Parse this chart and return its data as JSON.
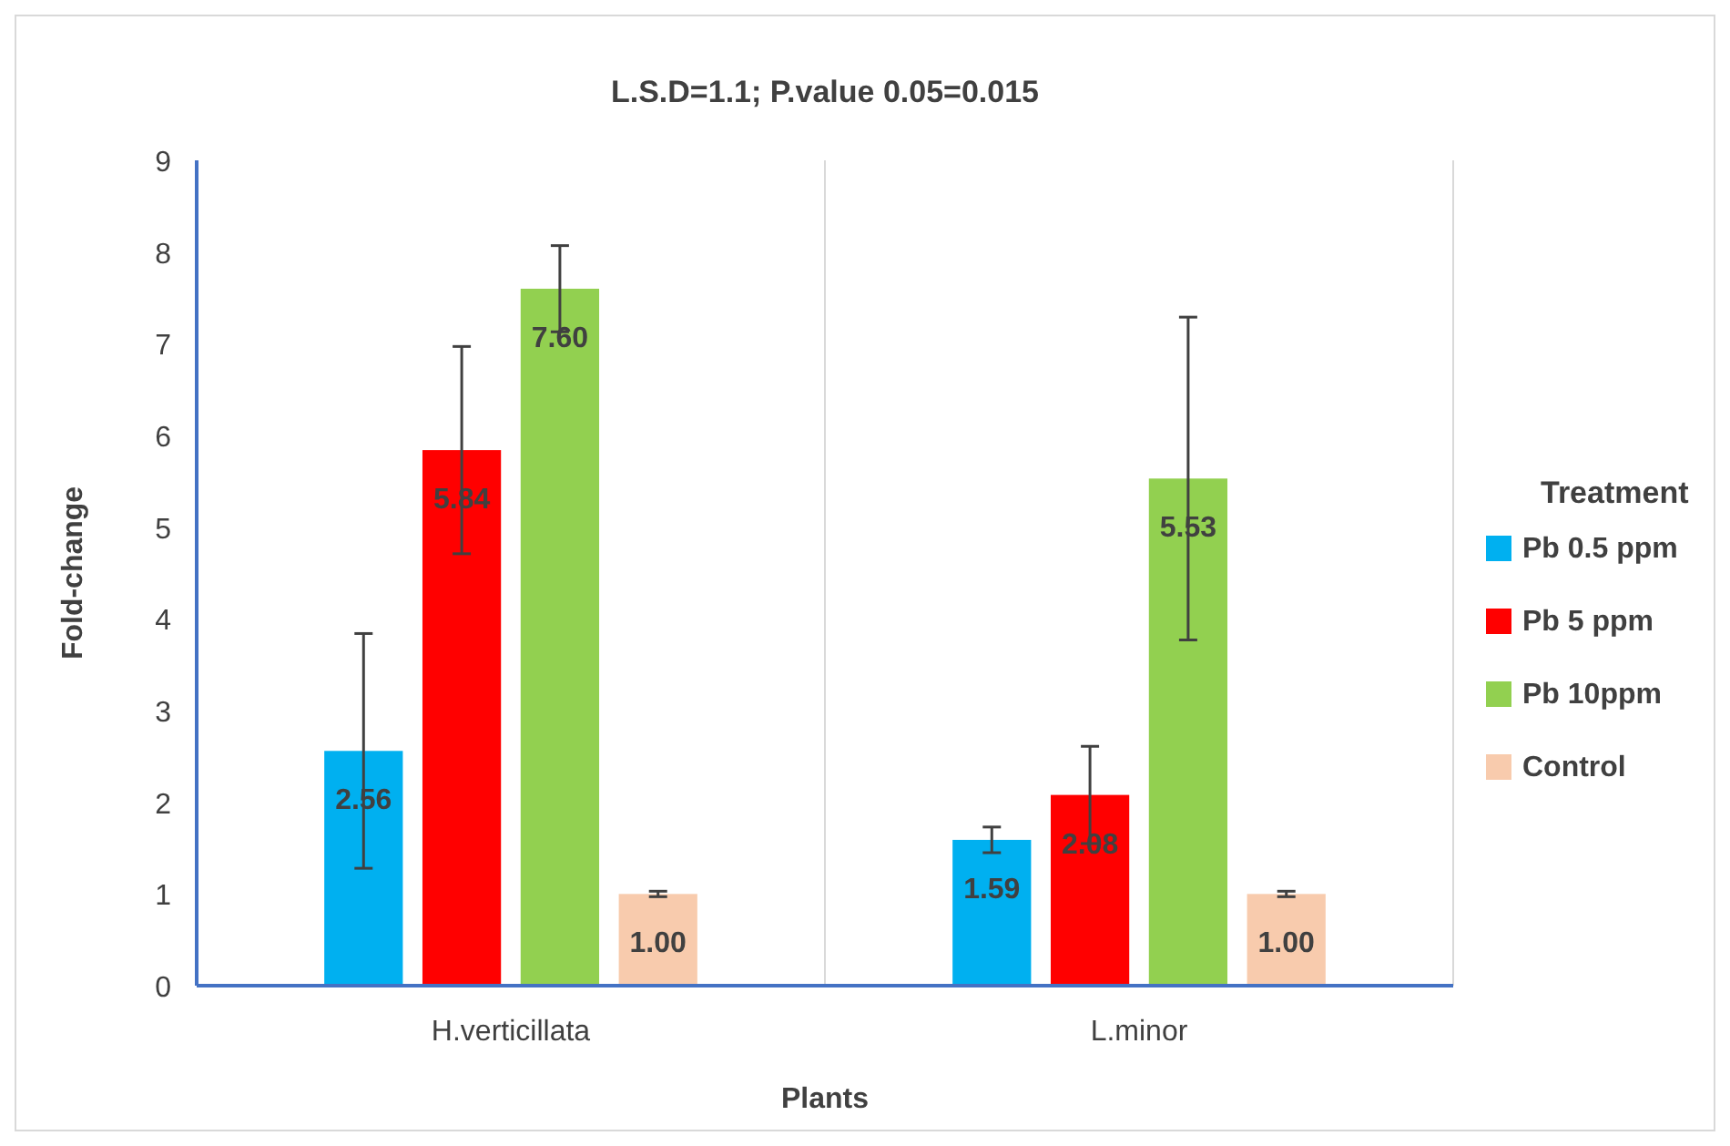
{
  "chart_data": {
    "type": "bar",
    "title": "L.S.D=1.1; P.value 0.05=0.015",
    "xlabel": "Plants",
    "ylabel": "Fold-change",
    "legend_title": "Treatment",
    "categories": [
      "H.verticillata",
      "L.minor"
    ],
    "series": [
      {
        "name": "Pb 0.5 ppm",
        "color": "#00b0f0",
        "values": [
          2.56,
          1.59
        ],
        "value_labels": [
          "2.56",
          "1.59"
        ],
        "errors": [
          1.28,
          0.14
        ]
      },
      {
        "name": "Pb 5 ppm",
        "color": "#ff0000",
        "values": [
          5.84,
          2.08
        ],
        "value_labels": [
          "5.84",
          "2.08"
        ],
        "errors": [
          1.13,
          0.53
        ]
      },
      {
        "name": "Pb 10ppm",
        "color": "#92d050",
        "values": [
          7.6,
          5.53
        ],
        "value_labels": [
          "7.60",
          "5.53"
        ],
        "errors": [
          0.47,
          1.76
        ]
      },
      {
        "name": "Control",
        "color": "#f8cbad",
        "values": [
          1.0,
          1.0
        ],
        "value_labels": [
          "1.00",
          "1.00"
        ],
        "errors": [
          0.03,
          0.03
        ]
      }
    ],
    "ylim": [
      0,
      9
    ],
    "yticks": [
      0,
      1,
      2,
      3,
      4,
      5,
      6,
      7,
      8,
      9
    ],
    "grid": "x",
    "legend": "right"
  }
}
